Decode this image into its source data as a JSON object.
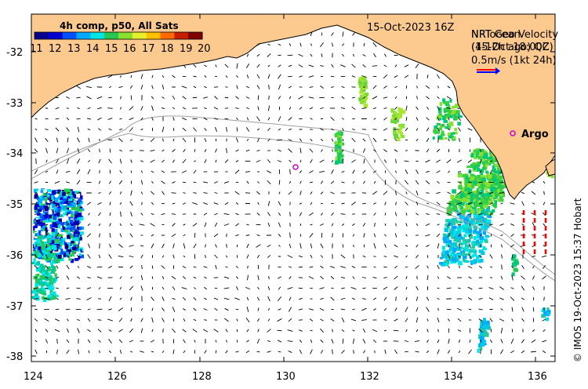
{
  "timestamp": "15-Oct-2023 16Z",
  "colorbar": {
    "title": "4h comp, p50, All Sats",
    "ticks": [
      "11",
      "12",
      "13",
      "14",
      "15",
      "16",
      "17",
      "18",
      "19",
      "20"
    ],
    "colors": [
      "#08008a",
      "#0000d0",
      "#0050ff",
      "#00a8ff",
      "#00e6e6",
      "#28c850",
      "#8ae032",
      "#e6f02a",
      "#ffc000",
      "#ff6a00",
      "#c81e00",
      "#800000"
    ]
  },
  "velocity_key": {
    "line1": "NRT Geo Velocity",
    "line2": "(4-12h ago) QC",
    "line1_overlay": "NRTocean",
    "line2_overlay": "(15-Oct 18:00Z)",
    "scale": "0.5m/s (1kt 24h)",
    "arrow_colors": [
      "#ff0000",
      "#0000ff"
    ]
  },
  "argo": {
    "label": "Argo",
    "marker_color": "#cc00cc"
  },
  "credit": "© IMOS 19-Oct-2023 15:37 Hobart",
  "axes": {
    "x_ticks": [
      "124",
      "126",
      "128",
      "130",
      "132",
      "134",
      "136"
    ],
    "y_ticks": [
      "-32",
      "-33",
      "-34",
      "-35",
      "-36",
      "-37",
      "-38"
    ],
    "lon_range": [
      124,
      136.6
    ],
    "lat_range": [
      -38.1,
      -31.3
    ]
  },
  "colors": {
    "land": "#fcc98f",
    "coast": "#000000",
    "bathymetry": "#a0a0a0",
    "ocean": "#ffffff"
  }
}
